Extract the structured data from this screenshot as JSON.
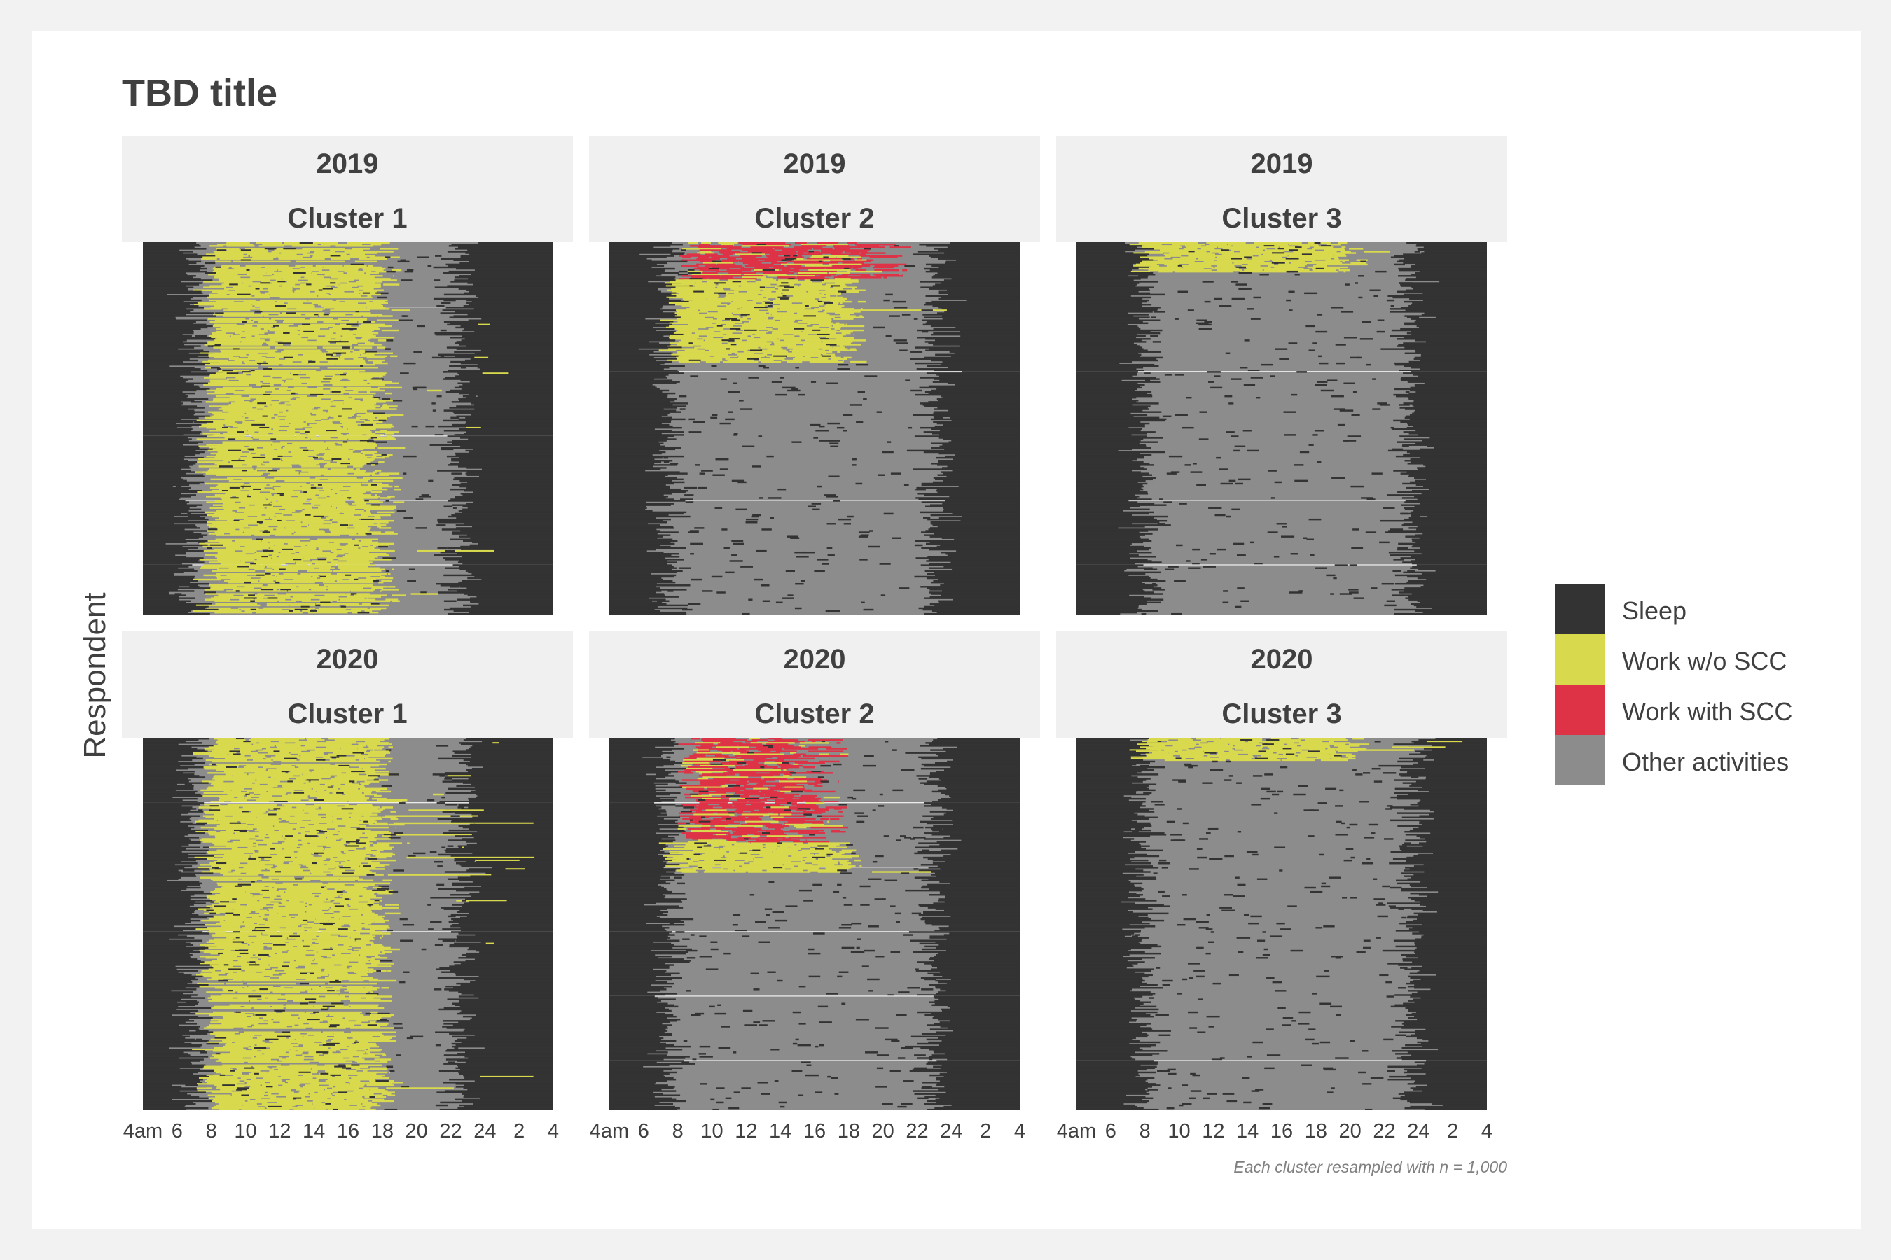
{
  "title": "TBD title",
  "ylabel": "Respondent",
  "caption": "Each cluster resampled with n = 1,000",
  "legend": [
    {
      "label": "Sleep",
      "color": "#333333"
    },
    {
      "label": "Work w/o SCC",
      "color": "#d9d94e"
    },
    {
      "label": "Work with SCC",
      "color": "#de3347"
    },
    {
      "label": "Other activities",
      "color": "#8c8c8c"
    }
  ],
  "chart_data": {
    "type": "heatmap",
    "title": "TBD title",
    "ylabel": "Respondent",
    "xlabel": "",
    "x_ticks": [
      "4am",
      "6",
      "8",
      "10",
      "12",
      "14",
      "16",
      "18",
      "20",
      "22",
      "24",
      "2",
      "4"
    ],
    "x_hours": [
      4,
      6,
      8,
      10,
      12,
      14,
      16,
      18,
      20,
      22,
      24,
      26,
      28
    ],
    "xlim": [
      4,
      28
    ],
    "n_per_cluster": 1000,
    "categories": [
      "Sleep",
      "Work w/o SCC",
      "Work with SCC",
      "Other activities"
    ],
    "facets": [
      {
        "year": "2019",
        "cluster": "Cluster 1",
        "wake": 7.0,
        "sleep": 22.5,
        "work_share": 0.9,
        "work_start": 8.0,
        "work_end": 18.0,
        "scc_share": 0.0,
        "scc_start": 0,
        "scc_end": 0
      },
      {
        "year": "2019",
        "cluster": "Cluster 2",
        "wake": 7.5,
        "sleep": 23.0,
        "work_share": 0.22,
        "work_start": 8.0,
        "work_end": 18.0,
        "scc_share": 0.1,
        "scc_start": 8.0,
        "scc_end": 22.0
      },
      {
        "year": "2019",
        "cluster": "Cluster 3",
        "wake": 8.0,
        "sleep": 23.5,
        "work_share": 0.08,
        "work_start": 8.0,
        "work_end": 20.0,
        "scc_share": 0.0,
        "scc_start": 0,
        "scc_end": 0
      },
      {
        "year": "2020",
        "cluster": "Cluster 1",
        "wake": 7.0,
        "sleep": 22.5,
        "work_share": 0.95,
        "work_start": 8.0,
        "work_end": 18.0,
        "scc_share": 0.0,
        "scc_start": 0,
        "scc_end": 0
      },
      {
        "year": "2020",
        "cluster": "Cluster 2",
        "wake": 7.5,
        "sleep": 23.0,
        "work_share": 0.08,
        "work_start": 8.0,
        "work_end": 18.0,
        "scc_share": 0.28,
        "scc_start": 8.0,
        "scc_end": 18.0
      },
      {
        "year": "2020",
        "cluster": "Cluster 3",
        "wake": 8.0,
        "sleep": 23.5,
        "work_share": 0.06,
        "work_start": 8.0,
        "work_end": 20.0,
        "scc_share": 0.0,
        "scc_start": 0,
        "scc_end": 0
      }
    ]
  }
}
